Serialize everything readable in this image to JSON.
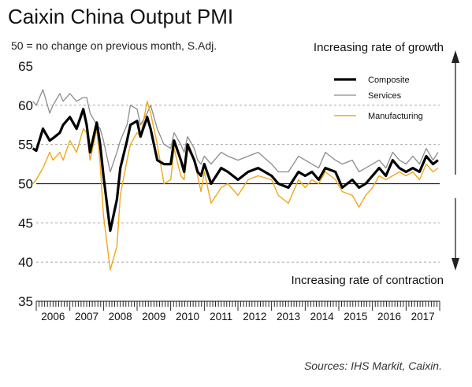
{
  "chart_data": {
    "type": "line",
    "title": "Caixin China Output PMI",
    "subtitle": "50 = no change on previous month, S.Adj.",
    "xlabel": "",
    "ylabel": "",
    "ylim": [
      35,
      65
    ],
    "yticks": [
      "35",
      "40",
      "45",
      "50",
      "55",
      "60",
      "65"
    ],
    "xlim": [
      2006.0,
      2018.0
    ],
    "x_tick_labels": [
      "2006",
      "2007",
      "2008",
      "2009",
      "2010",
      "2011",
      "2012",
      "2013",
      "2014",
      "2015",
      "2016",
      "2017"
    ],
    "reference_line": 50,
    "grid": "dashed horizontal",
    "legend_position": "top-right",
    "annotations": {
      "top": "Increasing rate of growth",
      "bottom": "Increasing rate of contraction"
    },
    "source": "Sources: IHS Markit, Caixin.",
    "colors": {
      "composite": "#000000",
      "services": "#8c8c8c",
      "manufacturing": "#f0a818",
      "arrow": "#222222"
    },
    "series": [
      {
        "name": "Composite",
        "x": [
          2005.9,
          2006.0,
          2006.2,
          2006.4,
          2006.5,
          2006.7,
          2006.8,
          2007.0,
          2007.2,
          2007.4,
          2007.5,
          2007.6,
          2007.8,
          2007.9,
          2008.0,
          2008.2,
          2008.4,
          2008.5,
          2008.7,
          2008.8,
          2009.0,
          2009.1,
          2009.3,
          2009.4,
          2009.6,
          2009.8,
          2010.0,
          2010.1,
          2010.3,
          2010.4,
          2010.5,
          2010.7,
          2010.8,
          2010.9,
          2011.0,
          2011.2,
          2011.5,
          2011.7,
          2012.0,
          2012.3,
          2012.6,
          2013.0,
          2013.2,
          2013.5,
          2013.8,
          2014.0,
          2014.2,
          2014.4,
          2014.6,
          2014.9,
          2015.1,
          2015.4,
          2015.6,
          2015.8,
          2016.0,
          2016.2,
          2016.4,
          2016.6,
          2016.8,
          2017.0,
          2017.2,
          2017.4,
          2017.6,
          2017.8,
          2017.95
        ],
        "values": [
          54.5,
          54.2,
          57.0,
          55.5,
          55.8,
          56.5,
          57.5,
          58.5,
          57.0,
          59.5,
          57.5,
          54.0,
          57.8,
          55.0,
          51.0,
          44.0,
          48.0,
          52.0,
          55.5,
          57.5,
          58.0,
          56.0,
          58.5,
          57.0,
          53.0,
          52.5,
          52.5,
          55.5,
          53.0,
          51.5,
          55.0,
          53.0,
          51.5,
          51.0,
          52.5,
          50.0,
          52.0,
          51.5,
          50.5,
          51.5,
          52.0,
          51.0,
          50.0,
          49.5,
          51.5,
          51.0,
          51.5,
          50.5,
          52.0,
          51.5,
          49.5,
          50.5,
          49.5,
          50.0,
          51.0,
          52.0,
          51.0,
          53.0,
          52.0,
          51.5,
          52.0,
          51.5,
          53.5,
          52.5,
          53.0
        ]
      },
      {
        "name": "Services",
        "x": [
          2005.9,
          2006.0,
          2006.2,
          2006.4,
          2006.5,
          2006.7,
          2006.8,
          2007.0,
          2007.2,
          2007.4,
          2007.5,
          2007.6,
          2007.8,
          2007.9,
          2008.0,
          2008.2,
          2008.4,
          2008.5,
          2008.7,
          2008.8,
          2009.0,
          2009.1,
          2009.3,
          2009.4,
          2009.6,
          2009.8,
          2010.0,
          2010.1,
          2010.3,
          2010.4,
          2010.5,
          2010.7,
          2010.8,
          2010.9,
          2011.0,
          2011.2,
          2011.5,
          2011.7,
          2012.0,
          2012.3,
          2012.6,
          2013.0,
          2013.2,
          2013.5,
          2013.8,
          2014.0,
          2014.2,
          2014.4,
          2014.6,
          2014.9,
          2015.1,
          2015.4,
          2015.6,
          2015.8,
          2016.0,
          2016.2,
          2016.4,
          2016.6,
          2016.8,
          2017.0,
          2017.2,
          2017.4,
          2017.6,
          2017.8,
          2017.95
        ],
        "values": [
          60.5,
          60.0,
          62.0,
          59.0,
          60.0,
          61.5,
          60.5,
          61.5,
          60.5,
          61.0,
          61.0,
          59.0,
          57.5,
          57.0,
          55.5,
          51.5,
          54.0,
          55.5,
          57.5,
          60.0,
          59.5,
          57.5,
          59.0,
          60.0,
          57.0,
          55.0,
          54.5,
          56.5,
          55.0,
          54.0,
          56.0,
          54.5,
          53.0,
          52.5,
          53.5,
          52.5,
          54.0,
          53.5,
          53.0,
          53.5,
          54.0,
          52.5,
          51.5,
          51.5,
          53.5,
          53.0,
          52.5,
          52.0,
          54.0,
          53.0,
          52.5,
          53.0,
          51.5,
          52.0,
          52.5,
          53.0,
          52.0,
          54.0,
          53.0,
          52.5,
          53.5,
          52.5,
          54.5,
          53.0,
          54.0
        ]
      },
      {
        "name": "Manufacturing",
        "x": [
          2005.9,
          2006.0,
          2006.2,
          2006.4,
          2006.5,
          2006.7,
          2006.8,
          2007.0,
          2007.2,
          2007.4,
          2007.5,
          2007.6,
          2007.8,
          2007.9,
          2008.0,
          2008.2,
          2008.4,
          2008.5,
          2008.7,
          2008.8,
          2009.0,
          2009.1,
          2009.3,
          2009.4,
          2009.6,
          2009.8,
          2010.0,
          2010.1,
          2010.3,
          2010.4,
          2010.5,
          2010.7,
          2010.8,
          2010.9,
          2011.0,
          2011.2,
          2011.5,
          2011.7,
          2012.0,
          2012.3,
          2012.6,
          2013.0,
          2013.2,
          2013.5,
          2013.8,
          2014.0,
          2014.2,
          2014.4,
          2014.6,
          2014.9,
          2015.1,
          2015.4,
          2015.6,
          2015.8,
          2016.0,
          2016.2,
          2016.4,
          2016.6,
          2016.8,
          2017.0,
          2017.2,
          2017.4,
          2017.6,
          2017.8,
          2017.95
        ],
        "values": [
          50.0,
          50.5,
          52.0,
          54.0,
          53.0,
          54.0,
          53.0,
          55.5,
          54.0,
          57.0,
          56.5,
          53.0,
          57.0,
          52.5,
          46.0,
          39.0,
          42.0,
          48.5,
          53.0,
          55.0,
          56.5,
          56.0,
          60.5,
          59.0,
          55.0,
          50.0,
          50.5,
          54.5,
          51.0,
          50.5,
          54.5,
          53.0,
          51.0,
          49.0,
          51.5,
          47.5,
          49.5,
          50.0,
          48.5,
          50.5,
          51.0,
          50.5,
          48.5,
          47.5,
          50.5,
          49.5,
          50.5,
          50.0,
          51.5,
          50.5,
          49.0,
          48.5,
          47.0,
          48.5,
          49.5,
          51.0,
          50.5,
          51.0,
          51.5,
          51.0,
          51.5,
          50.5,
          52.5,
          51.5,
          52.0
        ]
      }
    ]
  }
}
